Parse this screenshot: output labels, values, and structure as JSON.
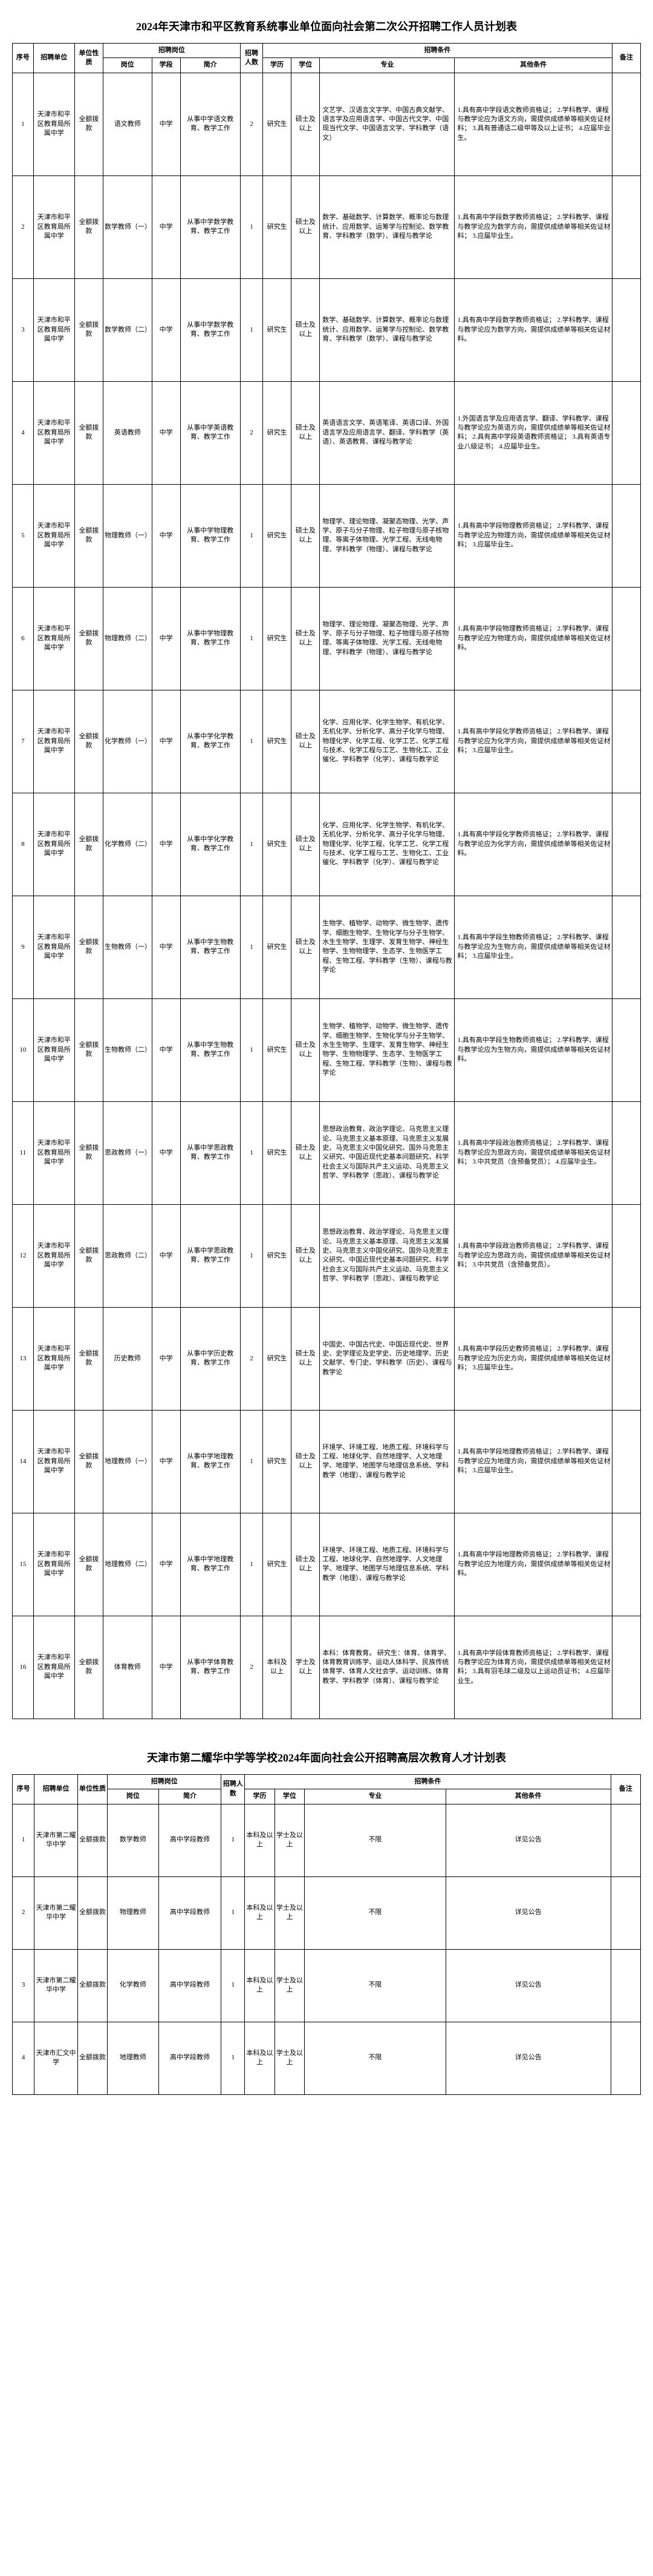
{
  "table1": {
    "title": "2024年天津市和平区教育系统事业单位面向社会第二次公开招聘工作人员计划表",
    "headers": {
      "seq": "序号",
      "unit": "招聘单位",
      "nature": "单位性质",
      "position_group": "招聘岗位",
      "post": "岗位",
      "level": "学段",
      "brief": "简介",
      "count": "招聘人数",
      "condition_group": "招聘条件",
      "edu": "学历",
      "degree": "学位",
      "major": "专业",
      "other": "其他条件",
      "remark": "备注"
    },
    "rows": [
      {
        "seq": "1",
        "unit": "天津市和平区教育局所属中学",
        "nature": "全额拨款",
        "post": "语文教师",
        "level": "中学",
        "brief": "从事中学语文教育、教学工作",
        "count": "2",
        "edu": "研究生",
        "degree": "硕士及以上",
        "major": "文艺学、汉语言文字学、中国古典文献学、语言学及应用语言学、中国古代文学、中国现当代文学、中国语言文学、学科教学（语文）",
        "other": "1.具有高中学段语文教师资格证；\n2.学科教学、课程与教学论应为语文方向，需提供成绩单等相关佐证材料；\n3.具有普通话二级甲等及以上证书；\n4.应届毕业生。"
      },
      {
        "seq": "2",
        "unit": "天津市和平区教育局所属中学",
        "nature": "全额拨款",
        "post": "数学教师（一）",
        "level": "中学",
        "brief": "从事中学数学教育、教学工作",
        "count": "1",
        "edu": "研究生",
        "degree": "硕士及以上",
        "major": "数学、基础数学、计算数学、概率论与数理统计、应用数学、运筹学与控制论、数学教育、学科教学（数学）、课程与教学论",
        "other": "1.具有高中学段数学教师资格证；\n2.学科教学、课程与教学论应为数学方向，需提供成绩单等相关佐证材料；\n3.应届毕业生。"
      },
      {
        "seq": "3",
        "unit": "天津市和平区教育局所属中学",
        "nature": "全额拨款",
        "post": "数学教师（二）",
        "level": "中学",
        "brief": "从事中学数学教育、教学工作",
        "count": "1",
        "edu": "研究生",
        "degree": "硕士及以上",
        "major": "数学、基础数学、计算数学、概率论与数理统计、应用数学、运筹学与控制论、数学教育、学科教学（数学）、课程与教学论",
        "other": "1.具有高中学段数学教师资格证；\n2.学科教学、课程与教学论应为数学方向，需提供成绩单等相关佐证材料。"
      },
      {
        "seq": "4",
        "unit": "天津市和平区教育局所属中学",
        "nature": "全额拨款",
        "post": "英语教师",
        "level": "中学",
        "brief": "从事中学英语教育、教学工作",
        "count": "2",
        "edu": "研究生",
        "degree": "硕士及以上",
        "major": "英语语言文学、英语笔译、英语口译、外国语言学及应用语言学、翻译、学科教学（英语）、英语教育、课程与教学论",
        "other": "1.外国语言学及应用语言学、翻译、学科教学、课程与教学论应为英语方向，需提供成绩单等相关佐证材料；\n2.具有高中学段英语教师资格证；\n3.具有英语专业八级证书；\n4.应届毕业生。"
      },
      {
        "seq": "5",
        "unit": "天津市和平区教育局所属中学",
        "nature": "全额拨款",
        "post": "物理教师（一）",
        "level": "中学",
        "brief": "从事中学物理教育、教学工作",
        "count": "1",
        "edu": "研究生",
        "degree": "硕士及以上",
        "major": "物理学、理论物理、凝聚态物理、光学、声学、原子与分子物理、粒子物理与原子核物理、等离子体物理、光学工程、无线电物理、学科教学（物理）、课程与教学论",
        "other": "1.具有高中学段物理教师资格证；\n2.学科教学、课程与教学论应为物理方向，需提供成绩单等相关佐证材料；\n3.应届毕业生。"
      },
      {
        "seq": "6",
        "unit": "天津市和平区教育局所属中学",
        "nature": "全额拨款",
        "post": "物理教师（二）",
        "level": "中学",
        "brief": "从事中学物理教育、教学工作",
        "count": "1",
        "edu": "研究生",
        "degree": "硕士及以上",
        "major": "物理学、理论物理、凝聚态物理、光学、声学、原子与分子物理、粒子物理与原子核物理、等离子体物理、光学工程、无线电物理、学科教学（物理）、课程与教学论",
        "other": "1.具有高中学段物理教师资格证；\n2.学科教学、课程与教学论应为物理方向，需提供成绩单等相关佐证材料。"
      },
      {
        "seq": "7",
        "unit": "天津市和平区教育局所属中学",
        "nature": "全额拨款",
        "post": "化学教师（一）",
        "level": "中学",
        "brief": "从事中学化学教育、教学工作",
        "count": "1",
        "edu": "研究生",
        "degree": "硕士及以上",
        "major": "化学、应用化学、化学生物学、有机化学、无机化学、分析化学、高分子化学与物理、物理化学、化学工程、化学工艺、化学工程与技术、化学工程与工艺、生物化工、工业催化、学科教学（化学）、课程与教学论",
        "other": "1.具有高中学段化学教师资格证；\n2.学科教学、课程与教学论应为化学方向，需提供成绩单等相关佐证材料；\n3.应届毕业生。"
      },
      {
        "seq": "8",
        "unit": "天津市和平区教育局所属中学",
        "nature": "全额拨款",
        "post": "化学教师（二）",
        "level": "中学",
        "brief": "从事中学化学教育、教学工作",
        "count": "1",
        "edu": "研究生",
        "degree": "硕士及以上",
        "major": "化学、应用化学、化学生物学、有机化学、无机化学、分析化学、高分子化学与物理、物理化学、化学工程、化学工艺、化学工程与技术、化学工程与工艺、生物化工、工业催化、学科教学（化学）、课程与教学论",
        "other": "1.具有高中学段化学教师资格证；\n2.学科教学、课程与教学论应为化学方向，需提供成绩单等相关佐证材料。"
      },
      {
        "seq": "9",
        "unit": "天津市和平区教育局所属中学",
        "nature": "全额拨款",
        "post": "生物教师（一）",
        "level": "中学",
        "brief": "从事中学生物教育、教学工作",
        "count": "1",
        "edu": "研究生",
        "degree": "硕士及以上",
        "major": "生物学、植物学、动物学、微生物学、遗传学、细胞生物学、生物化学与分子生物学、水生生物学、生理学、发育生物学、神经生物学、生物物理学、生态学、生物医学工程、生物工程、学科教学（生物）、课程与教学论",
        "other": "1.具有高中学段生物教师资格证；\n2.学科教学、课程与教学论应为生物方向，需提供成绩单等相关佐证材料；\n3.应届毕业生。"
      },
      {
        "seq": "10",
        "unit": "天津市和平区教育局所属中学",
        "nature": "全额拨款",
        "post": "生物教师（二）",
        "level": "中学",
        "brief": "从事中学生物教育、教学工作",
        "count": "1",
        "edu": "研究生",
        "degree": "硕士及以上",
        "major": "生物学、植物学、动物学、微生物学、遗传学、细胞生物学、生物化学与分子生物学、水生生物学、生理学、发育生物学、神经生物学、生物物理学、生态学、生物医学工程、生物工程、学科教学（生物）、课程与教学论",
        "other": "1.具有高中学段生物教师资格证；\n2.学科教学、课程与教学论应为生物方向，需提供成绩单等相关佐证材料。"
      },
      {
        "seq": "11",
        "unit": "天津市和平区教育局所属中学",
        "nature": "全额拨款",
        "post": "思政教师（一）",
        "level": "中学",
        "brief": "从事中学思政教育、教学工作",
        "count": "1",
        "edu": "研究生",
        "degree": "硕士及以上",
        "major": "思想政治教育、政治学理论、马克思主义理论、马克思主义基本原理、马克思主义发展史、马克思主义中国化研究、国外马克思主义研究、中国近现代史基本问题研究、科学社会主义与国际共产主义运动、马克思主义哲学、学科教学（思政）、课程与教学论",
        "other": "1.具有高中学段政治教师资格证；\n2.学科教学、课程与教学论应为思政方向，需提供成绩单等相关佐证材料；\n3.中共党员（含预备党员）；\n4.应届毕业生。"
      },
      {
        "seq": "12",
        "unit": "天津市和平区教育局所属中学",
        "nature": "全额拨款",
        "post": "思政教师（二）",
        "level": "中学",
        "brief": "从事中学思政教育、教学工作",
        "count": "1",
        "edu": "研究生",
        "degree": "硕士及以上",
        "major": "思想政治教育、政治学理论、马克思主义理论、马克思主义基本原理、马克思主义发展史、马克思主义中国化研究、国外马克思主义研究、中国近现代史基本问题研究、科学社会主义与国际共产主义运动、马克思主义哲学、学科教学（思政）、课程与教学论",
        "other": "1.具有高中学段政治教师资格证；\n2.学科教学、课程与教学论应为思政方向，需提供成绩单等相关佐证材料；\n3.中共党员（含预备党员）。"
      },
      {
        "seq": "13",
        "unit": "天津市和平区教育局所属中学",
        "nature": "全额拨款",
        "post": "历史教师",
        "level": "中学",
        "brief": "从事中学历史教育、教学工作",
        "count": "2",
        "edu": "研究生",
        "degree": "硕士及以上",
        "major": "中国史、中国古代史、中国近现代史、世界史、史学理论及史学史、历史地理学、历史文献学、专门史、学科教学（历史）、课程与教学论",
        "other": "1.具有高中学段历史教师资格证；\n2.学科教学、课程与教学论应为历史方向，需提供成绩单等相关佐证材料；\n3.应届毕业生。"
      },
      {
        "seq": "14",
        "unit": "天津市和平区教育局所属中学",
        "nature": "全额拨款",
        "post": "地理教师（一）",
        "level": "中学",
        "brief": "从事中学地理教育、教学工作",
        "count": "1",
        "edu": "研究生",
        "degree": "硕士及以上",
        "major": "环境学、环境工程、地质工程、环境科学与工程、地球化学、自然地理学、人文地理学、地理学、地图学与地理信息系统、学科教学（地理）、课程与教学论",
        "other": "1.具有高中学段地理教师资格证；\n2.学科教学、课程与教学论应为地理方向，需提供成绩单等相关佐证材料；\n3.应届毕业生。"
      },
      {
        "seq": "15",
        "unit": "天津市和平区教育局所属中学",
        "nature": "全额拨款",
        "post": "地理教师（二）",
        "level": "中学",
        "brief": "从事中学地理教育、教学工作",
        "count": "1",
        "edu": "研究生",
        "degree": "硕士及以上",
        "major": "环境学、环境工程、地质工程、环境科学与工程、地球化学、自然地理学、人文地理学、地理学、地图学与地理信息系统、学科教学（地理）、课程与教学论",
        "other": "1.具有高中学段地理教师资格证；\n2.学科教学、课程与教学论应为地理方向，需提供成绩单等相关佐证材料。"
      },
      {
        "seq": "16",
        "unit": "天津市和平区教育局所属中学",
        "nature": "全额拨款",
        "post": "体育教师",
        "level": "中学",
        "brief": "从事中学体育教育、教学工作",
        "count": "2",
        "edu": "本科及以上",
        "degree": "学士及以上",
        "major": "本科：体育教育。\n\n研究生：体育、体育学、体育教育训练学、运动人体科学、民族传统体育学、体育人文社会学、运动训练、体育教学、学科教学（体育）、课程与教学论",
        "other": "1.具有高中学段体育教师资格证；\n2.学科教学、课程与教学论应为体育方向，需提供成绩单等相关佐证材料；\n3.具有羽毛球二级及以上运动员证书；\n4.应届毕业生。"
      }
    ]
  },
  "table2": {
    "title": "天津市第二耀华中学等学校2024年面向社会公开招聘高层次教育人才计划表",
    "headers": {
      "seq": "序号",
      "unit": "招聘单位",
      "nature": "单位性质",
      "position_group": "招聘岗位",
      "post": "岗位",
      "brief": "简介",
      "count": "招聘人数",
      "condition_group": "招聘条件",
      "edu": "学历",
      "degree": "学位",
      "major": "专业",
      "other": "其他条件",
      "remark": "备注"
    },
    "rows": [
      {
        "seq": "1",
        "unit": "天津市第二耀华中学",
        "nature": "全额拨款",
        "post": "数学教师",
        "brief": "高中学段教师",
        "count": "1",
        "edu": "本科及以上",
        "degree": "学士及以上",
        "major": "不限",
        "other": "详见公告"
      },
      {
        "seq": "2",
        "unit": "天津市第二耀华中学",
        "nature": "全额拨款",
        "post": "物理教师",
        "brief": "高中学段教师",
        "count": "1",
        "edu": "本科及以上",
        "degree": "学士及以上",
        "major": "不限",
        "other": "详见公告"
      },
      {
        "seq": "3",
        "unit": "天津市第二耀华中学",
        "nature": "全额拨款",
        "post": "化学教师",
        "brief": "高中学段教师",
        "count": "1",
        "edu": "本科及以上",
        "degree": "学士及以上",
        "major": "不限",
        "other": "详见公告"
      },
      {
        "seq": "4",
        "unit": "天津市汇文中学",
        "nature": "全额拨款",
        "post": "地理教师",
        "brief": "高中学段教师",
        "count": "1",
        "edu": "本科及以上",
        "degree": "学士及以上",
        "major": "不限",
        "other": "详见公告"
      }
    ]
  }
}
